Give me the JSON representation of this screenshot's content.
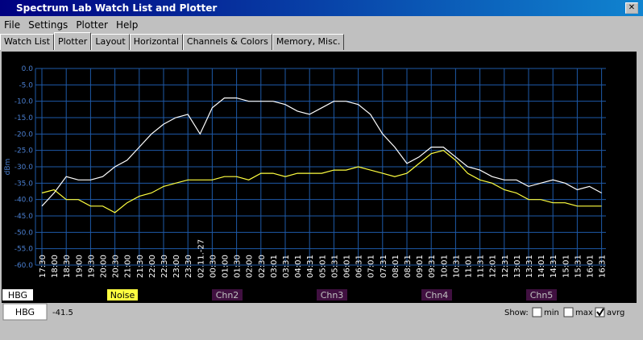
{
  "window": {
    "title": "Spectrum Lab  Watch List and Plotter"
  },
  "menu": [
    "File",
    "Settings",
    "Plotter",
    "Help"
  ],
  "tabs": [
    "Watch List",
    "Plotter",
    "Layout",
    "Horizontal",
    "Channels & Colors",
    "Memory, Misc."
  ],
  "active_tab": 1,
  "chart_data": {
    "type": "line",
    "y_label": "dBm",
    "categories": [
      "17:30",
      "18:00",
      "18:30",
      "19:00",
      "19:30",
      "20:00",
      "20:30",
      "21:00",
      "21:30",
      "22:00",
      "22:30",
      "23:00",
      "23:30",
      "02.11.-27",
      "00:30",
      "01:00",
      "01:30",
      "02:00",
      "02:30",
      "03:01",
      "03:31",
      "04:01",
      "04:31",
      "05:01",
      "05:31",
      "06:01",
      "06:31",
      "07:01",
      "07:31",
      "08:01",
      "08:31",
      "09:01",
      "09:31",
      "10:01",
      "10:31",
      "11:01",
      "11:31",
      "12:01",
      "12:31",
      "13:01",
      "13:31",
      "14:01",
      "14:31",
      "15:01",
      "15:31",
      "16:01",
      "16:31"
    ],
    "series": [
      {
        "name": "HBG",
        "color": "#ffffff",
        "values": [
          -42,
          -38,
          -33,
          -34,
          -34,
          -33,
          -30,
          -28,
          -24,
          -20,
          -17,
          -15,
          -14,
          -20,
          -12,
          -9,
          -9,
          -10,
          -10,
          -10,
          -11,
          -13,
          -14,
          -12,
          -10,
          -10,
          -11,
          -14,
          -20,
          -24,
          -29,
          -27,
          -24,
          -24,
          -27,
          -30,
          -31,
          -33,
          -34,
          -34,
          -36,
          -35,
          -34,
          -35,
          -37,
          -36,
          -38
        ]
      },
      {
        "name": "Noise",
        "color": "#ffff40",
        "values": [
          -38,
          -37,
          -40,
          -40,
          -42,
          -42,
          -44,
          -41,
          -39,
          -38,
          -36,
          -35,
          -34,
          -34,
          -34,
          -33,
          -33,
          -34,
          -32,
          -32,
          -33,
          -32,
          -32,
          -32,
          -31,
          -31,
          -30,
          -31,
          -32,
          -33,
          -32,
          -29,
          -26,
          -25,
          -28,
          -32,
          -34,
          -35,
          -37,
          -38,
          -40,
          -40,
          -41,
          -41,
          -42,
          -42,
          -42
        ]
      }
    ],
    "channels": [
      "Chn2",
      "Chn3",
      "Chn4",
      "Chn5"
    ],
    "ylim": [
      -60,
      0
    ],
    "yticks": [
      {
        "value": 0,
        "label": "0.0"
      },
      {
        "value": -5,
        "label": "-5.0"
      },
      {
        "value": -10,
        "label": "-10.0"
      },
      {
        "value": -15,
        "label": "-15.0"
      },
      {
        "value": -20,
        "label": "-20.0"
      },
      {
        "value": -25,
        "label": "-25.0"
      },
      {
        "value": -30,
        "label": "-30.0"
      },
      {
        "value": -35,
        "label": "-35.0"
      },
      {
        "value": -40,
        "label": "-40.0"
      },
      {
        "value": -45,
        "label": "-45.0"
      },
      {
        "value": -50,
        "label": "-50.0"
      },
      {
        "value": -55,
        "label": "-55.0"
      },
      {
        "value": -60,
        "label": "-60.0"
      }
    ],
    "grid": true
  },
  "status": {
    "channel": "HBG",
    "reading": -41.5,
    "show_label": "Show:",
    "options": [
      {
        "label": "min",
        "checked": false
      },
      {
        "label": "max",
        "checked": false
      },
      {
        "label": "avrg",
        "checked": true
      }
    ]
  }
}
